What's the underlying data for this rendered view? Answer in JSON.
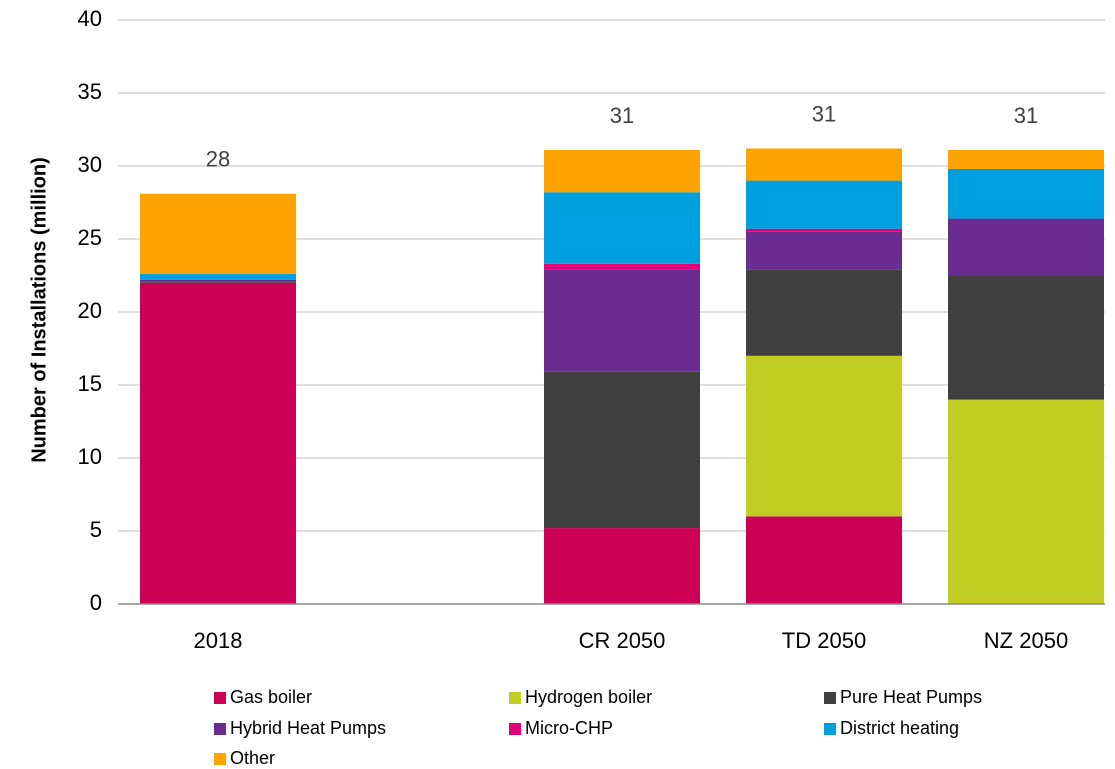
{
  "chart_data": {
    "type": "stacked_bar",
    "y_label": "Number of Installations (million)",
    "categories": [
      "2018",
      null,
      "CR 2050",
      "TD 2050",
      "NZ 2050"
    ],
    "series": [
      {
        "name": "Gas boiler",
        "color": "#cc0055",
        "values": [
          22.0,
          null,
          5.2,
          6.0,
          0
        ]
      },
      {
        "name": "Hydrogen boiler",
        "color": "#c2cd23",
        "values": [
          0,
          null,
          0,
          11.0,
          14.0
        ]
      },
      {
        "name": "Pure Heat Pumps",
        "color": "#404040",
        "values": [
          0.1,
          null,
          10.7,
          5.9,
          8.5
        ]
      },
      {
        "name": "Hybrid Heat Pumps",
        "color": "#6b2c91",
        "values": [
          0.1,
          null,
          7.0,
          2.6,
          3.9
        ]
      },
      {
        "name": "Micro-CHP",
        "color": "#e0007a",
        "values": [
          0,
          null,
          0.4,
          0.2,
          0
        ]
      },
      {
        "name": "District heating",
        "color": "#00a0e0",
        "values": [
          0.4,
          null,
          4.9,
          3.3,
          3.4
        ]
      },
      {
        "name": "Other",
        "color": "#ffa300",
        "values": [
          5.5,
          null,
          2.9,
          2.2,
          1.3
        ]
      }
    ],
    "totals": [
      28,
      null,
      31,
      31,
      31
    ],
    "ylim": [
      0,
      40
    ],
    "yticks": [
      0,
      5,
      10,
      15,
      20,
      25,
      30,
      35,
      40
    ],
    "grid": true,
    "legend": "bottom"
  }
}
